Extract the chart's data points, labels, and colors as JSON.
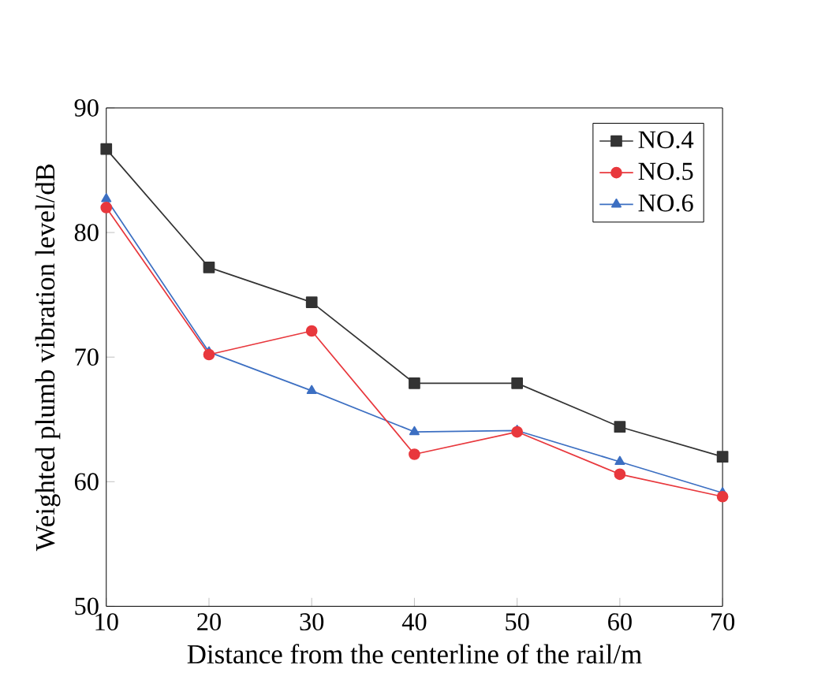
{
  "chart_data": {
    "type": "line",
    "xlabel": "Distance from the centerline of the rail/m",
    "ylabel": "Weighted plumb vibration level/dB",
    "x": [
      10,
      20,
      30,
      40,
      50,
      60,
      70
    ],
    "series": [
      {
        "name": "NO.4",
        "color": "#333333",
        "marker": "square",
        "values": [
          86.7,
          77.2,
          74.4,
          67.9,
          67.9,
          64.4,
          62.0
        ]
      },
      {
        "name": "NO.5",
        "color": "#e8383d",
        "marker": "circle",
        "values": [
          82.0,
          70.2,
          72.1,
          62.2,
          64.0,
          60.6,
          58.8
        ]
      },
      {
        "name": "NO.6",
        "color": "#3c6fc2",
        "marker": "triangle",
        "values": [
          82.7,
          70.4,
          67.3,
          64.0,
          64.1,
          61.6,
          59.1
        ]
      }
    ],
    "xlim": [
      10,
      70
    ],
    "xticks": [
      10,
      20,
      30,
      40,
      50,
      60,
      70
    ],
    "ylim": [
      50,
      90
    ],
    "yticks": [
      50,
      60,
      70,
      80,
      90
    ],
    "legend": "top right",
    "grid": false,
    "line_style": "solid"
  }
}
